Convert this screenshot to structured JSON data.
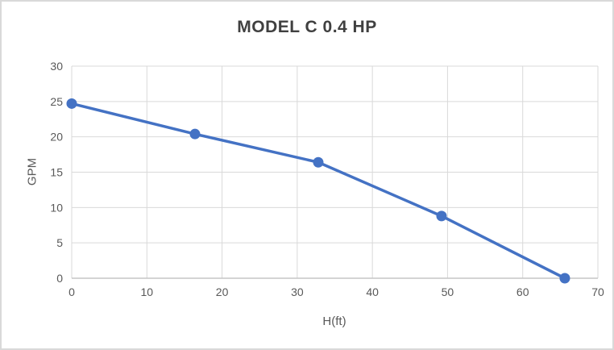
{
  "chart_data": {
    "type": "line",
    "title": "MODEL C 0.4 HP",
    "xlabel": "H(ft)",
    "ylabel": "GPM",
    "series": [
      {
        "name": "MODEL C 0.4 HP",
        "x": [
          0,
          16.4,
          32.8,
          49.2,
          65.6
        ],
        "y": [
          24.7,
          20.4,
          16.4,
          8.8,
          0
        ]
      }
    ],
    "xlim": [
      0,
      70
    ],
    "ylim": [
      0,
      30
    ],
    "xticks": [
      0,
      10,
      20,
      30,
      40,
      50,
      60,
      70
    ],
    "yticks": [
      0,
      5,
      10,
      15,
      20,
      25,
      30
    ],
    "grid": true,
    "legend_position": "none",
    "colors": {
      "series_line": "#4472C4",
      "marker_fill": "#4472C4",
      "gridline": "#d9d9d9",
      "axis_line": "#c6c6c6",
      "title_text": "#404040",
      "axis_text": "#595959",
      "card_border": "#d9d9d9",
      "background": "#ffffff"
    }
  }
}
